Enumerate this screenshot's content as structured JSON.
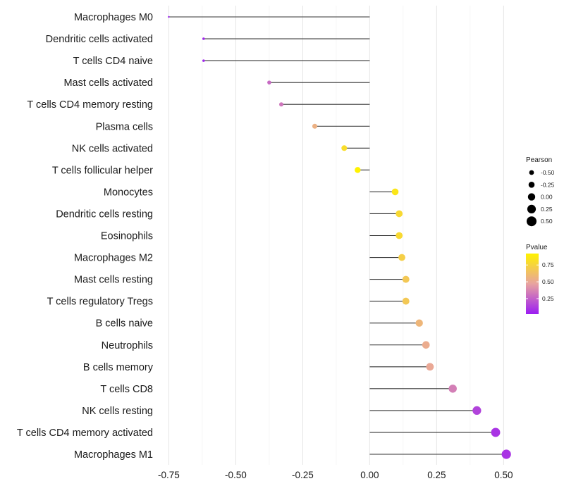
{
  "chart_data": {
    "type": "lollipop",
    "title": "",
    "xlabel": "",
    "ylabel": "",
    "xlim": [
      -0.78,
      0.52
    ],
    "x_ticks": [
      -0.75,
      -0.5,
      -0.25,
      0.0,
      0.25,
      0.5
    ],
    "x_tick_labels": [
      "-0.75",
      "-0.50",
      "-0.25",
      "0.00",
      "0.25",
      "0.50"
    ],
    "grid": "vertical only",
    "categories": [
      "Macrophages M0",
      "Dendritic cells activated",
      "T cells CD4 naive",
      "Mast cells activated",
      "T cells CD4 memory resting",
      "Plasma cells",
      "NK cells activated",
      "T cells follicular helper",
      "Monocytes",
      "Dendritic cells resting",
      "Eosinophils",
      "Macrophages M2",
      "Mast cells resting",
      "T cells regulatory  Tregs ",
      "B cells naive",
      "Neutrophils",
      "B cells memory",
      "T cells CD8",
      "NK cells resting",
      "T cells CD4 memory activated",
      "Macrophages M1"
    ],
    "pearson": [
      -0.75,
      -0.62,
      -0.62,
      -0.375,
      -0.33,
      -0.205,
      -0.095,
      -0.045,
      0.095,
      0.11,
      0.11,
      0.12,
      0.135,
      0.135,
      0.185,
      0.21,
      0.225,
      0.31,
      0.4,
      0.47,
      0.51
    ],
    "pvalue": [
      0.02,
      0.05,
      0.05,
      0.28,
      0.32,
      0.55,
      0.8,
      0.92,
      0.85,
      0.78,
      0.78,
      0.72,
      0.68,
      0.68,
      0.58,
      0.52,
      0.5,
      0.35,
      0.15,
      0.1,
      0.1
    ],
    "legend": {
      "size_title": "Pearson",
      "size_levels": [
        -0.5,
        -0.25,
        0.0,
        0.25,
        0.5
      ],
      "size_labels": [
        "-0.50",
        "-0.25",
        "0.00",
        "0.25",
        "0.50"
      ],
      "color_title": "Pvalue",
      "color_ticks": [
        0.25,
        0.5,
        0.75
      ],
      "color_tick_labels": [
        "0.25",
        "0.50",
        "0.75"
      ],
      "color_range": [
        0.02,
        0.92
      ],
      "color_low": "#9b1cf3",
      "color_mid": "#e8a3a0",
      "color_high": "#fff200",
      "placement": "right"
    }
  }
}
